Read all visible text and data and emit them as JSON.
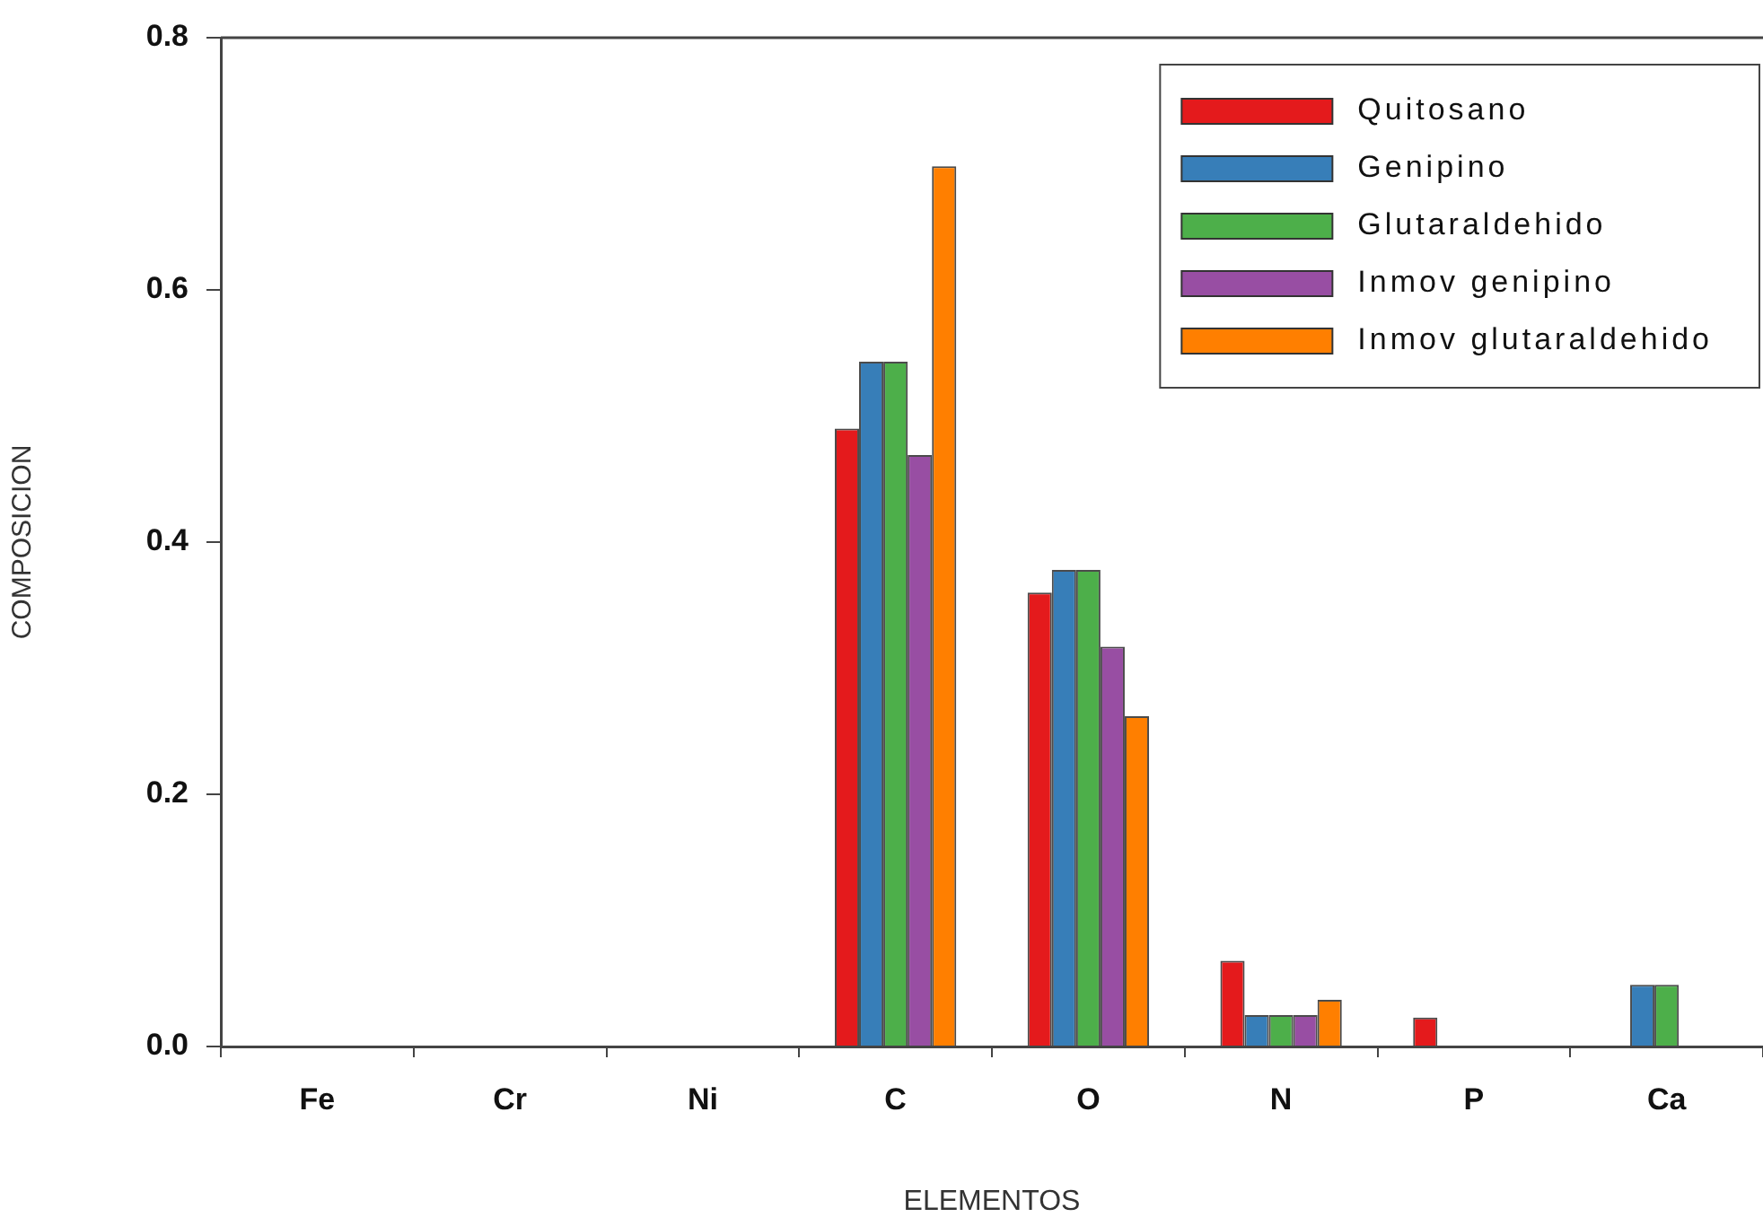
{
  "chart_data": {
    "type": "bar",
    "xlabel": "ELEMENTOS",
    "ylabel": "COMPOSICION",
    "categories": [
      "Fe",
      "Cr",
      "Ni",
      "C",
      "O",
      "N",
      "P",
      "Ca"
    ],
    "series": [
      {
        "name": "Quitosano",
        "color": "#e41a1c",
        "values": [
          0,
          0,
          0,
          0.49,
          0.36,
          0.068,
          0.023,
          0
        ]
      },
      {
        "name": "Genipino",
        "color": "#377eb8",
        "values": [
          0,
          0,
          0,
          0.543,
          0.378,
          0.025,
          0,
          0.049
        ]
      },
      {
        "name": "Glutaraldehido",
        "color": "#4daf4a",
        "values": [
          0,
          0,
          0,
          0.543,
          0.378,
          0.025,
          0,
          0.049
        ]
      },
      {
        "name": "Inmov genipino",
        "color": "#984ea3",
        "values": [
          0,
          0,
          0,
          0.469,
          0.317,
          0.025,
          0,
          0
        ]
      },
      {
        "name": "Inmov glutaraldehido",
        "color": "#ff7f00",
        "values": [
          0,
          0,
          0,
          0.698,
          0.262,
          0.037,
          0,
          0
        ]
      }
    ],
    "ylim": [
      0,
      0.8
    ],
    "yticks": [
      {
        "value": 0,
        "label": "0.0"
      },
      0.2,
      0.4,
      0.6,
      0.8
    ],
    "grid": false,
    "legend": "top right"
  }
}
